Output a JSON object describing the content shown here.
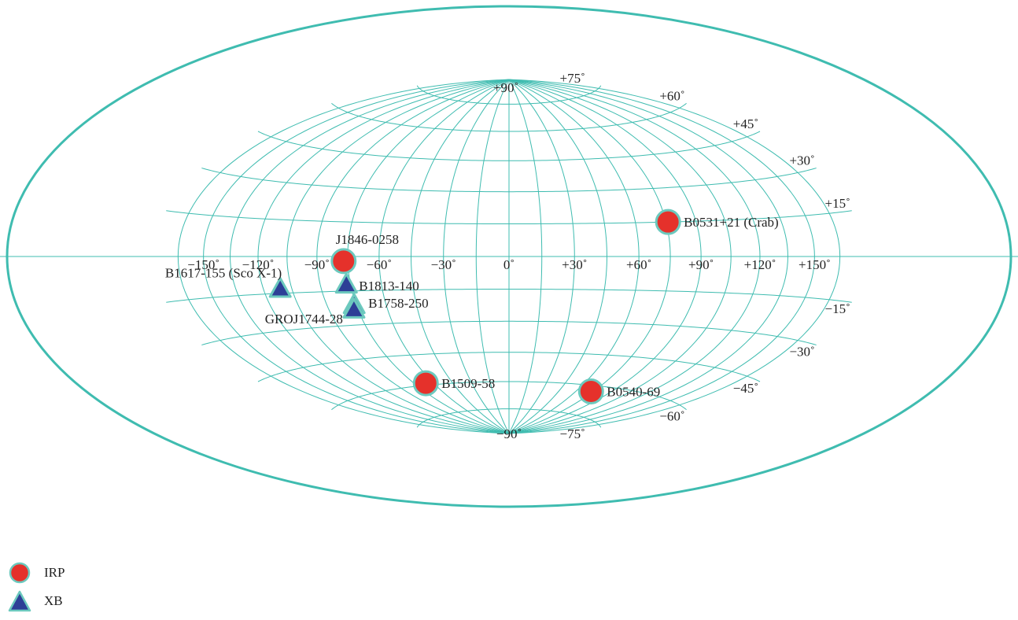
{
  "chart_data": {
    "type": "scatter",
    "projection": "hammer-aitoff",
    "colors": {
      "grid": "#3fbcb0",
      "irp": "#e5312b",
      "xb": "#2d3f96",
      "marker_edge": "#6cc9be"
    },
    "lon_ticks": [
      {
        "value": -150,
        "label": "−150˚"
      },
      {
        "value": -120,
        "label": "−120˚"
      },
      {
        "value": -90,
        "label": "−90˚"
      },
      {
        "value": -60,
        "label": "−60˚"
      },
      {
        "value": -30,
        "label": "−30˚"
      },
      {
        "value": 0,
        "label": "0˚"
      },
      {
        "value": 30,
        "label": "+30˚"
      },
      {
        "value": 60,
        "label": "+60˚"
      },
      {
        "value": 90,
        "label": "+90˚"
      },
      {
        "value": 120,
        "label": "+120˚"
      },
      {
        "value": 150,
        "label": "+150˚"
      }
    ],
    "lat_ticks": [
      {
        "value": 90,
        "label": "+90˚"
      },
      {
        "value": 75,
        "label": "+75˚"
      },
      {
        "value": 60,
        "label": "+60˚"
      },
      {
        "value": 45,
        "label": "+45˚"
      },
      {
        "value": 30,
        "label": "+30˚"
      },
      {
        "value": 15,
        "label": "+15˚"
      },
      {
        "value": -15,
        "label": "−15˚"
      },
      {
        "value": -30,
        "label": "−30˚"
      },
      {
        "value": -45,
        "label": "−45˚"
      },
      {
        "value": -60,
        "label": "−60˚"
      },
      {
        "value": -75,
        "label": "−75˚"
      },
      {
        "value": -90,
        "label": "−90˚"
      }
    ],
    "series": [
      {
        "name": "IRP",
        "marker": "circle",
        "points": [
          {
            "label": "B0531+21 (Crab)",
            "lon": 76,
            "lat": 15
          },
          {
            "label": "J1846-0258",
            "lon": -77,
            "lat": -2
          },
          {
            "label": "B1509-58",
            "lon": -66,
            "lat": -59
          },
          {
            "label": "B0540-69",
            "lon": 73,
            "lat": -63
          }
        ]
      },
      {
        "name": "XB",
        "marker": "triangle",
        "points": [
          {
            "label": "B1617-155 (Sco X-1)",
            "lon": -111,
            "lat": -13
          },
          {
            "label": "B1813-140",
            "lon": -77,
            "lat": -12
          },
          {
            "label": "B1758-250",
            "lon": -76,
            "lat": -21
          },
          {
            "label": "GROJ1744-28",
            "lon": -77,
            "lat": -23
          }
        ]
      }
    ]
  },
  "legend": {
    "items": [
      {
        "name": "IRP",
        "marker": "circle"
      },
      {
        "name": "XB",
        "marker": "triangle"
      }
    ]
  }
}
